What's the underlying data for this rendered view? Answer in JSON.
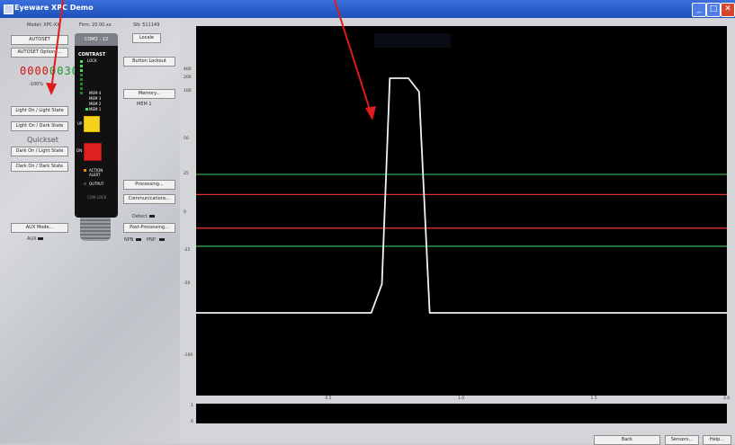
{
  "window": {
    "title": "Eyeware XPC Demo",
    "min": "_",
    "max": "□",
    "close": "✕",
    "icon": "app-icon"
  },
  "info": {
    "model": "Model: XPC-XX",
    "firmware": "Firm: 20.00.xx",
    "serial": "SN: 511149"
  },
  "left": {
    "autoset": "AUTOSET",
    "autoset_options": "AUTOSET Options...",
    "display_red": "0000",
    "display_green": "0030",
    "percent": "-100%",
    "light_on_light": "Light On / Light State",
    "light_on_dark": "Light On / Dark State",
    "quickset": "Quickset",
    "dark_on_light": "Dark On / Light State",
    "dark_on_dark": "Dark On / Dark State",
    "aux_mode": "AUX Mode...",
    "aux": "AUX"
  },
  "device": {
    "header": "COM2 - 12",
    "contrast": "CONTRAST",
    "lock": "LOCK",
    "mem": [
      "MEM 4",
      "MEM 3",
      "MEM 2",
      "MEM 1"
    ],
    "up": "UP",
    "down": "DN",
    "action_alert": "ACTION ALERT",
    "output": "OUTPUT",
    "com_lock": "COM LOCK"
  },
  "right_controls": {
    "locale": "Locale",
    "button_lockout": "Button Lockout",
    "memory": "Memory...",
    "mem_current": "MEM 1",
    "processing": "Processing...",
    "communications": "Communications...",
    "detect": "Detect",
    "post_processing": "Post-Processing...",
    "npn": "NPN",
    "pnp": "PNP"
  },
  "footer": {
    "back": "Back",
    "sensors": "Sensors...",
    "help": "Help..."
  },
  "chart_data": {
    "type": "line",
    "title": "",
    "xlabel": "",
    "ylabel": "",
    "xlim": [
      0,
      2.0
    ],
    "x_ticks": [
      "0.5",
      "1.0",
      "1.5",
      "2.0"
    ],
    "y_ticks": [
      "400",
      "200",
      "100",
      "50",
      "25",
      "0",
      "-25",
      "-50",
      "-100"
    ],
    "series": [
      {
        "x": [
          0,
          0.66,
          0.7,
          0.73,
          0.8,
          0.84,
          0.88,
          2.0
        ],
        "y": [
          -70,
          -70,
          -50,
          200,
          200,
          100,
          -70,
          -70
        ]
      }
    ],
    "reference_lines": [
      {
        "y": 25,
        "color": "#2fa64a"
      },
      {
        "y": 12,
        "color": "#e03030"
      },
      {
        "y": -10,
        "color": "#e03030"
      },
      {
        "y": -22,
        "color": "#2fa64a"
      }
    ],
    "mini_y_ticks": [
      "1",
      "0"
    ]
  }
}
